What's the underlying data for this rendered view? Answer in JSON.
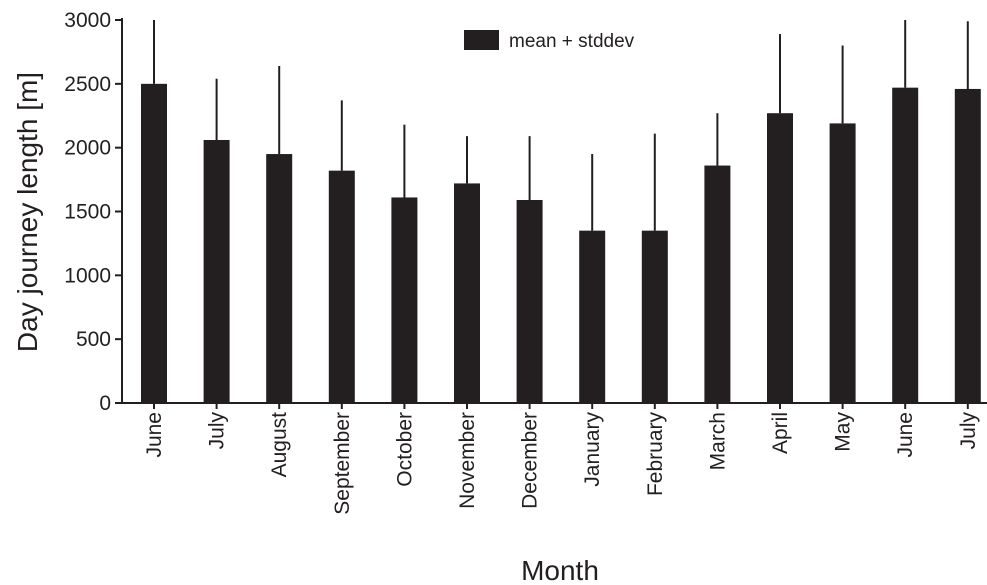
{
  "chart_data": {
    "type": "bar",
    "categories": [
      "June",
      "July",
      "August",
      "September",
      "October",
      "November",
      "December",
      "January",
      "February",
      "March",
      "April",
      "May",
      "June",
      "July"
    ],
    "series": [
      {
        "name": "mean + stddev",
        "values": [
          2500,
          2060,
          1950,
          1820,
          1610,
          1720,
          1590,
          1350,
          1350,
          1860,
          2270,
          2190,
          2470,
          2460
        ],
        "stddev": [
          500,
          480,
          690,
          550,
          570,
          370,
          500,
          600,
          760,
          410,
          620,
          610,
          530,
          530
        ]
      }
    ],
    "title": "",
    "xlabel": "Month",
    "ylabel": "Day journey length [m]",
    "ylim": [
      0,
      3000
    ],
    "yticks": [
      0,
      500,
      1000,
      1500,
      2000,
      2500,
      3000
    ],
    "grid": false,
    "legend": {
      "placement": "top-center"
    },
    "colors": {
      "bar": "#231f20",
      "axis": "#231f20"
    }
  }
}
